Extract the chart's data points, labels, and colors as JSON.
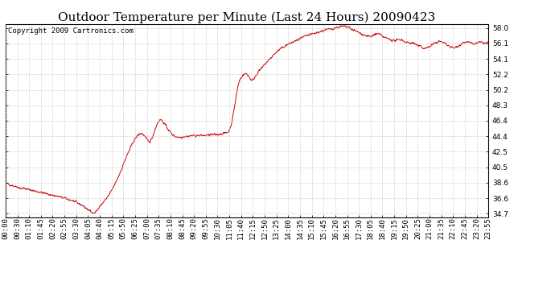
{
  "title": "Outdoor Temperature per Minute (Last 24 Hours) 20090423",
  "copyright_text": "Copyright 2009 Cartronics.com",
  "line_color": "#cc0000",
  "background_color": "#ffffff",
  "plot_bg_color": "#ffffff",
  "grid_color": "#bbbbbb",
  "yticks": [
    34.7,
    36.6,
    38.6,
    40.5,
    42.5,
    44.4,
    46.4,
    48.3,
    50.2,
    52.2,
    54.1,
    56.1,
    58.0
  ],
  "ylim": [
    34.2,
    58.5
  ],
  "xtick_labels": [
    "00:00",
    "00:30",
    "01:10",
    "01:45",
    "02:20",
    "02:55",
    "03:30",
    "04:05",
    "04:40",
    "05:15",
    "05:50",
    "06:25",
    "07:00",
    "07:35",
    "08:10",
    "08:45",
    "09:20",
    "09:55",
    "10:30",
    "11:05",
    "11:40",
    "12:15",
    "12:50",
    "13:25",
    "14:00",
    "14:35",
    "15:10",
    "15:45",
    "16:20",
    "16:55",
    "17:30",
    "18:05",
    "18:40",
    "19:15",
    "19:50",
    "20:25",
    "21:00",
    "21:35",
    "22:10",
    "22:45",
    "23:20",
    "23:55"
  ],
  "title_fontsize": 11,
  "tick_fontsize": 6.5,
  "copyright_fontsize": 6.5,
  "keypoints": [
    [
      0,
      38.5
    ],
    [
      15,
      38.3
    ],
    [
      30,
      38.1
    ],
    [
      45,
      37.9
    ],
    [
      60,
      37.8
    ],
    [
      90,
      37.5
    ],
    [
      120,
      37.2
    ],
    [
      150,
      36.9
    ],
    [
      170,
      36.7
    ],
    [
      185,
      36.5
    ],
    [
      200,
      36.3
    ],
    [
      215,
      36.0
    ],
    [
      230,
      35.7
    ],
    [
      245,
      35.2
    ],
    [
      255,
      34.9
    ],
    [
      263,
      34.7
    ],
    [
      275,
      35.2
    ],
    [
      285,
      35.8
    ],
    [
      295,
      36.3
    ],
    [
      305,
      36.8
    ],
    [
      315,
      37.5
    ],
    [
      325,
      38.3
    ],
    [
      335,
      39.2
    ],
    [
      345,
      40.2
    ],
    [
      355,
      41.3
    ],
    [
      365,
      42.3
    ],
    [
      375,
      43.2
    ],
    [
      383,
      43.9
    ],
    [
      390,
      44.3
    ],
    [
      397,
      44.6
    ],
    [
      403,
      44.8
    ],
    [
      408,
      44.7
    ],
    [
      413,
      44.5
    ],
    [
      418,
      44.2
    ],
    [
      423,
      43.9
    ],
    [
      428,
      43.7
    ],
    [
      433,
      43.9
    ],
    [
      438,
      44.3
    ],
    [
      445,
      45.2
    ],
    [
      452,
      46.0
    ],
    [
      458,
      46.4
    ],
    [
      463,
      46.5
    ],
    [
      468,
      46.3
    ],
    [
      473,
      46.0
    ],
    [
      478,
      45.7
    ],
    [
      483,
      45.4
    ],
    [
      488,
      45.1
    ],
    [
      493,
      44.8
    ],
    [
      498,
      44.6
    ],
    [
      505,
      44.4
    ],
    [
      515,
      44.3
    ],
    [
      525,
      44.3
    ],
    [
      535,
      44.4
    ],
    [
      545,
      44.4
    ],
    [
      555,
      44.5
    ],
    [
      565,
      44.5
    ],
    [
      575,
      44.5
    ],
    [
      585,
      44.5
    ],
    [
      595,
      44.5
    ],
    [
      610,
      44.6
    ],
    [
      625,
      44.6
    ],
    [
      640,
      44.7
    ],
    [
      655,
      44.8
    ],
    [
      665,
      45.0
    ],
    [
      672,
      45.8
    ],
    [
      678,
      47.0
    ],
    [
      683,
      48.3
    ],
    [
      688,
      49.6
    ],
    [
      693,
      50.8
    ],
    [
      698,
      51.5
    ],
    [
      705,
      52.0
    ],
    [
      712,
      52.2
    ],
    [
      718,
      52.3
    ],
    [
      724,
      52.0
    ],
    [
      730,
      51.6
    ],
    [
      736,
      51.4
    ],
    [
      742,
      51.8
    ],
    [
      748,
      52.2
    ],
    [
      755,
      52.6
    ],
    [
      762,
      52.9
    ],
    [
      770,
      53.3
    ],
    [
      780,
      53.8
    ],
    [
      792,
      54.3
    ],
    [
      805,
      54.9
    ],
    [
      820,
      55.4
    ],
    [
      835,
      55.8
    ],
    [
      850,
      56.1
    ],
    [
      865,
      56.4
    ],
    [
      880,
      56.7
    ],
    [
      895,
      57.0
    ],
    [
      910,
      57.2
    ],
    [
      925,
      57.4
    ],
    [
      940,
      57.6
    ],
    [
      955,
      57.8
    ],
    [
      968,
      57.9
    ],
    [
      980,
      58.0
    ],
    [
      990,
      58.1
    ],
    [
      1000,
      58.2
    ],
    [
      1010,
      58.2
    ],
    [
      1020,
      58.1
    ],
    [
      1030,
      57.9
    ],
    [
      1040,
      57.7
    ],
    [
      1050,
      57.5
    ],
    [
      1060,
      57.3
    ],
    [
      1070,
      57.1
    ],
    [
      1080,
      57.0
    ],
    [
      1090,
      56.9
    ],
    [
      1095,
      57.1
    ],
    [
      1100,
      57.2
    ],
    [
      1108,
      57.3
    ],
    [
      1115,
      57.2
    ],
    [
      1122,
      57.0
    ],
    [
      1130,
      56.8
    ],
    [
      1138,
      56.7
    ],
    [
      1145,
      56.6
    ],
    [
      1152,
      56.5
    ],
    [
      1160,
      56.4
    ],
    [
      1168,
      56.5
    ],
    [
      1175,
      56.6
    ],
    [
      1182,
      56.5
    ],
    [
      1190,
      56.3
    ],
    [
      1198,
      56.2
    ],
    [
      1205,
      56.1
    ],
    [
      1212,
      56.2
    ],
    [
      1220,
      56.0
    ],
    [
      1228,
      55.8
    ],
    [
      1237,
      55.7
    ],
    [
      1245,
      55.5
    ],
    [
      1253,
      55.5
    ],
    [
      1260,
      55.6
    ],
    [
      1268,
      55.8
    ],
    [
      1275,
      56.0
    ],
    [
      1283,
      56.2
    ],
    [
      1290,
      56.3
    ],
    [
      1298,
      56.3
    ],
    [
      1305,
      56.2
    ],
    [
      1312,
      56.0
    ],
    [
      1320,
      55.8
    ],
    [
      1328,
      55.6
    ],
    [
      1335,
      55.5
    ],
    [
      1342,
      55.6
    ],
    [
      1350,
      55.8
    ],
    [
      1358,
      56.0
    ],
    [
      1365,
      56.2
    ],
    [
      1372,
      56.3
    ],
    [
      1380,
      56.2
    ],
    [
      1388,
      56.1
    ],
    [
      1395,
      56.0
    ],
    [
      1405,
      56.1
    ],
    [
      1412,
      56.2
    ],
    [
      1420,
      56.2
    ],
    [
      1430,
      56.1
    ],
    [
      1439,
      56.2
    ]
  ]
}
